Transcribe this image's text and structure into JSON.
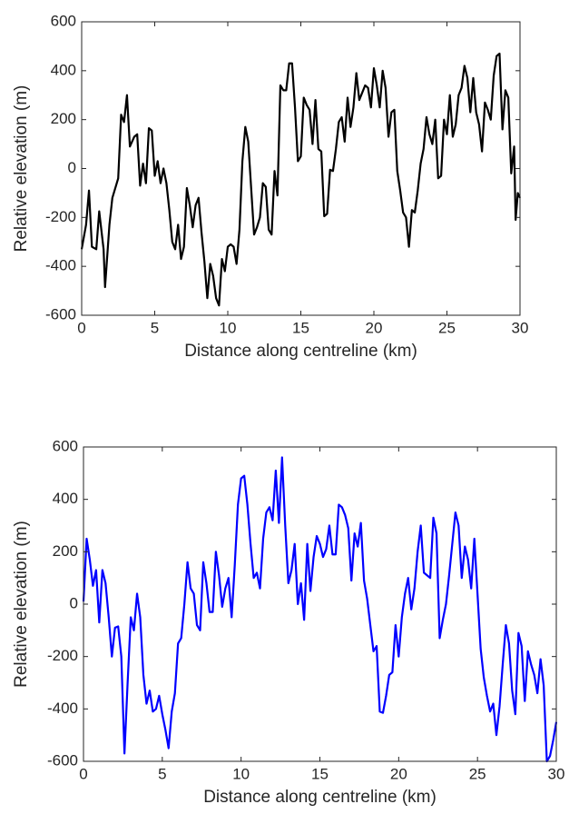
{
  "chart_data": [
    {
      "type": "line",
      "color": "#000000",
      "xlabel": "Distance along centreline (km)",
      "ylabel": "Relative elevation (m)",
      "xlim": [
        0,
        30
      ],
      "xticks": [
        0,
        5,
        10,
        15,
        20,
        25,
        30
      ],
      "ylim": [
        -600,
        600
      ],
      "yticks": [
        -600,
        -400,
        -200,
        0,
        200,
        400,
        600
      ],
      "x": [
        0,
        0.3,
        0.5,
        0.7,
        1.0,
        1.2,
        1.5,
        1.6,
        1.9,
        2.1,
        2.5,
        2.7,
        2.9,
        3.1,
        3.3,
        3.6,
        3.8,
        4.0,
        4.2,
        4.4,
        4.6,
        4.8,
        5.0,
        5.2,
        5.4,
        5.6,
        5.8,
        6.0,
        6.2,
        6.4,
        6.6,
        6.8,
        7.0,
        7.2,
        7.4,
        7.6,
        7.8,
        8.0,
        8.2,
        8.4,
        8.6,
        8.8,
        9.0,
        9.2,
        9.4,
        9.6,
        9.8,
        10.0,
        10.2,
        10.4,
        10.6,
        10.8,
        11.0,
        11.2,
        11.4,
        11.6,
        11.8,
        12.0,
        12.2,
        12.4,
        12.6,
        12.8,
        13.0,
        13.2,
        13.4,
        13.6,
        13.8,
        14.0,
        14.2,
        14.4,
        14.6,
        14.8,
        15.0,
        15.2,
        15.4,
        15.6,
        15.8,
        16.0,
        16.2,
        16.4,
        16.6,
        16.8,
        17.0,
        17.2,
        17.4,
        17.6,
        17.8,
        18.0,
        18.2,
        18.4,
        18.6,
        18.8,
        19.0,
        19.2,
        19.4,
        19.6,
        19.8,
        20.0,
        20.2,
        20.4,
        20.6,
        20.8,
        21.0,
        21.2,
        21.4,
        21.6,
        21.8,
        22.0,
        22.2,
        22.4,
        22.6,
        22.8,
        23.0,
        23.2,
        23.4,
        23.6,
        23.8,
        24.0,
        24.2,
        24.4,
        24.6,
        24.8,
        25.0,
        25.2,
        25.4,
        25.6,
        25.8,
        26.0,
        26.2,
        26.4,
        26.6,
        26.8,
        27.0,
        27.2,
        27.4,
        27.6,
        27.8,
        28.0,
        28.2,
        28.4,
        28.6,
        28.8,
        29.0,
        29.2,
        29.4,
        29.6,
        29.7,
        29.85,
        30.0
      ],
      "values": [
        -330,
        -230,
        -90,
        -320,
        -330,
        -175,
        -330,
        -485,
        -230,
        -120,
        -40,
        220,
        190,
        300,
        90,
        130,
        140,
        -70,
        20,
        -60,
        165,
        155,
        -30,
        30,
        -60,
        0,
        -60,
        -170,
        -300,
        -330,
        -230,
        -370,
        -320,
        -80,
        -150,
        -240,
        -150,
        -120,
        -260,
        -380,
        -530,
        -390,
        -440,
        -530,
        -560,
        -370,
        -420,
        -320,
        -310,
        -320,
        -390,
        -250,
        30,
        170,
        110,
        -80,
        -270,
        -240,
        -200,
        -60,
        -75,
        -250,
        -270,
        -10,
        -110,
        340,
        320,
        320,
        430,
        430,
        250,
        30,
        50,
        290,
        260,
        240,
        100,
        280,
        80,
        70,
        -195,
        -185,
        -5,
        -10,
        80,
        190,
        210,
        110,
        290,
        170,
        250,
        390,
        280,
        310,
        340,
        330,
        250,
        410,
        340,
        250,
        400,
        330,
        130,
        230,
        240,
        -10,
        -90,
        -180,
        -200,
        -320,
        -170,
        -180,
        -90,
        20,
        80,
        210,
        140,
        100,
        200,
        -40,
        -30,
        200,
        140,
        300,
        130,
        180,
        300,
        330,
        420,
        370,
        230,
        370,
        230,
        180,
        70,
        270,
        240,
        200,
        380,
        460,
        470,
        160,
        320,
        290,
        -20,
        90,
        -210,
        -100,
        -120
      ]
    },
    {
      "type": "line",
      "color": "#0000ff",
      "xlabel": "Distance along centreline (km)",
      "ylabel": "Relative elevation (m)",
      "xlim": [
        0,
        30
      ],
      "xticks": [
        0,
        5,
        10,
        15,
        20,
        25,
        30
      ],
      "ylim": [
        -600,
        600
      ],
      "yticks": [
        -600,
        -400,
        -200,
        0,
        200,
        400,
        600
      ],
      "x": [
        0,
        0.2,
        0.4,
        0.6,
        0.8,
        1.0,
        1.2,
        1.4,
        1.6,
        1.8,
        2.0,
        2.2,
        2.4,
        2.6,
        2.8,
        3.0,
        3.2,
        3.4,
        3.6,
        3.8,
        4.0,
        4.2,
        4.4,
        4.6,
        4.8,
        5.0,
        5.2,
        5.4,
        5.6,
        5.8,
        6.0,
        6.2,
        6.4,
        6.6,
        6.8,
        7.0,
        7.2,
        7.4,
        7.6,
        7.8,
        8.0,
        8.2,
        8.4,
        8.6,
        8.8,
        9.0,
        9.2,
        9.4,
        9.6,
        9.8,
        10.0,
        10.2,
        10.4,
        10.6,
        10.8,
        11.0,
        11.2,
        11.4,
        11.6,
        11.8,
        12.0,
        12.2,
        12.4,
        12.6,
        12.8,
        13.0,
        13.2,
        13.4,
        13.6,
        13.8,
        14.0,
        14.2,
        14.4,
        14.6,
        14.8,
        15.0,
        15.2,
        15.4,
        15.6,
        15.8,
        16.0,
        16.2,
        16.4,
        16.6,
        16.8,
        17.0,
        17.2,
        17.4,
        17.6,
        17.8,
        18.0,
        18.2,
        18.4,
        18.6,
        18.8,
        19.0,
        19.2,
        19.4,
        19.6,
        19.8,
        20.0,
        20.2,
        20.4,
        20.6,
        20.8,
        21.0,
        21.2,
        21.4,
        21.6,
        21.8,
        22.0,
        22.2,
        22.4,
        22.6,
        22.8,
        23.0,
        23.2,
        23.4,
        23.6,
        23.8,
        24.0,
        24.2,
        24.4,
        24.6,
        24.8,
        25.0,
        25.2,
        25.4,
        25.6,
        25.8,
        26.0,
        26.2,
        26.4,
        26.6,
        26.8,
        27.0,
        27.2,
        27.4,
        27.6,
        27.8,
        28.0,
        28.2,
        28.4,
        28.6,
        28.8,
        29.0,
        29.2,
        29.4,
        29.6,
        29.8,
        30.0
      ],
      "values": [
        10,
        250,
        170,
        70,
        130,
        -70,
        130,
        80,
        -50,
        -200,
        -90,
        -85,
        -200,
        -570,
        -300,
        -50,
        -100,
        40,
        -50,
        -270,
        -380,
        -330,
        -410,
        -400,
        -350,
        -420,
        -480,
        -550,
        -410,
        -340,
        -150,
        -130,
        0,
        160,
        60,
        40,
        -80,
        -100,
        160,
        80,
        -30,
        -30,
        200,
        110,
        -10,
        60,
        100,
        -50,
        150,
        380,
        480,
        490,
        380,
        230,
        100,
        120,
        60,
        250,
        350,
        370,
        320,
        510,
        310,
        560,
        300,
        80,
        130,
        230,
        0,
        80,
        -60,
        230,
        50,
        180,
        260,
        230,
        180,
        210,
        300,
        190,
        190,
        380,
        370,
        340,
        290,
        90,
        270,
        220,
        310,
        90,
        20,
        -80,
        -180,
        -160,
        -410,
        -415,
        -350,
        -270,
        -260,
        -80,
        -200,
        -50,
        40,
        100,
        -20,
        60,
        200,
        300,
        120,
        110,
        100,
        330,
        270,
        -130,
        -60,
        0,
        110,
        230,
        350,
        300,
        100,
        220,
        170,
        60,
        250,
        40,
        -170,
        -280,
        -350,
        -410,
        -380,
        -500,
        -390,
        -230,
        -80,
        -150,
        -330,
        -420,
        -110,
        -160,
        -370,
        -180,
        -230,
        -270,
        -340,
        -210,
        -310,
        -600,
        -580,
        -520,
        -450
      ]
    }
  ]
}
